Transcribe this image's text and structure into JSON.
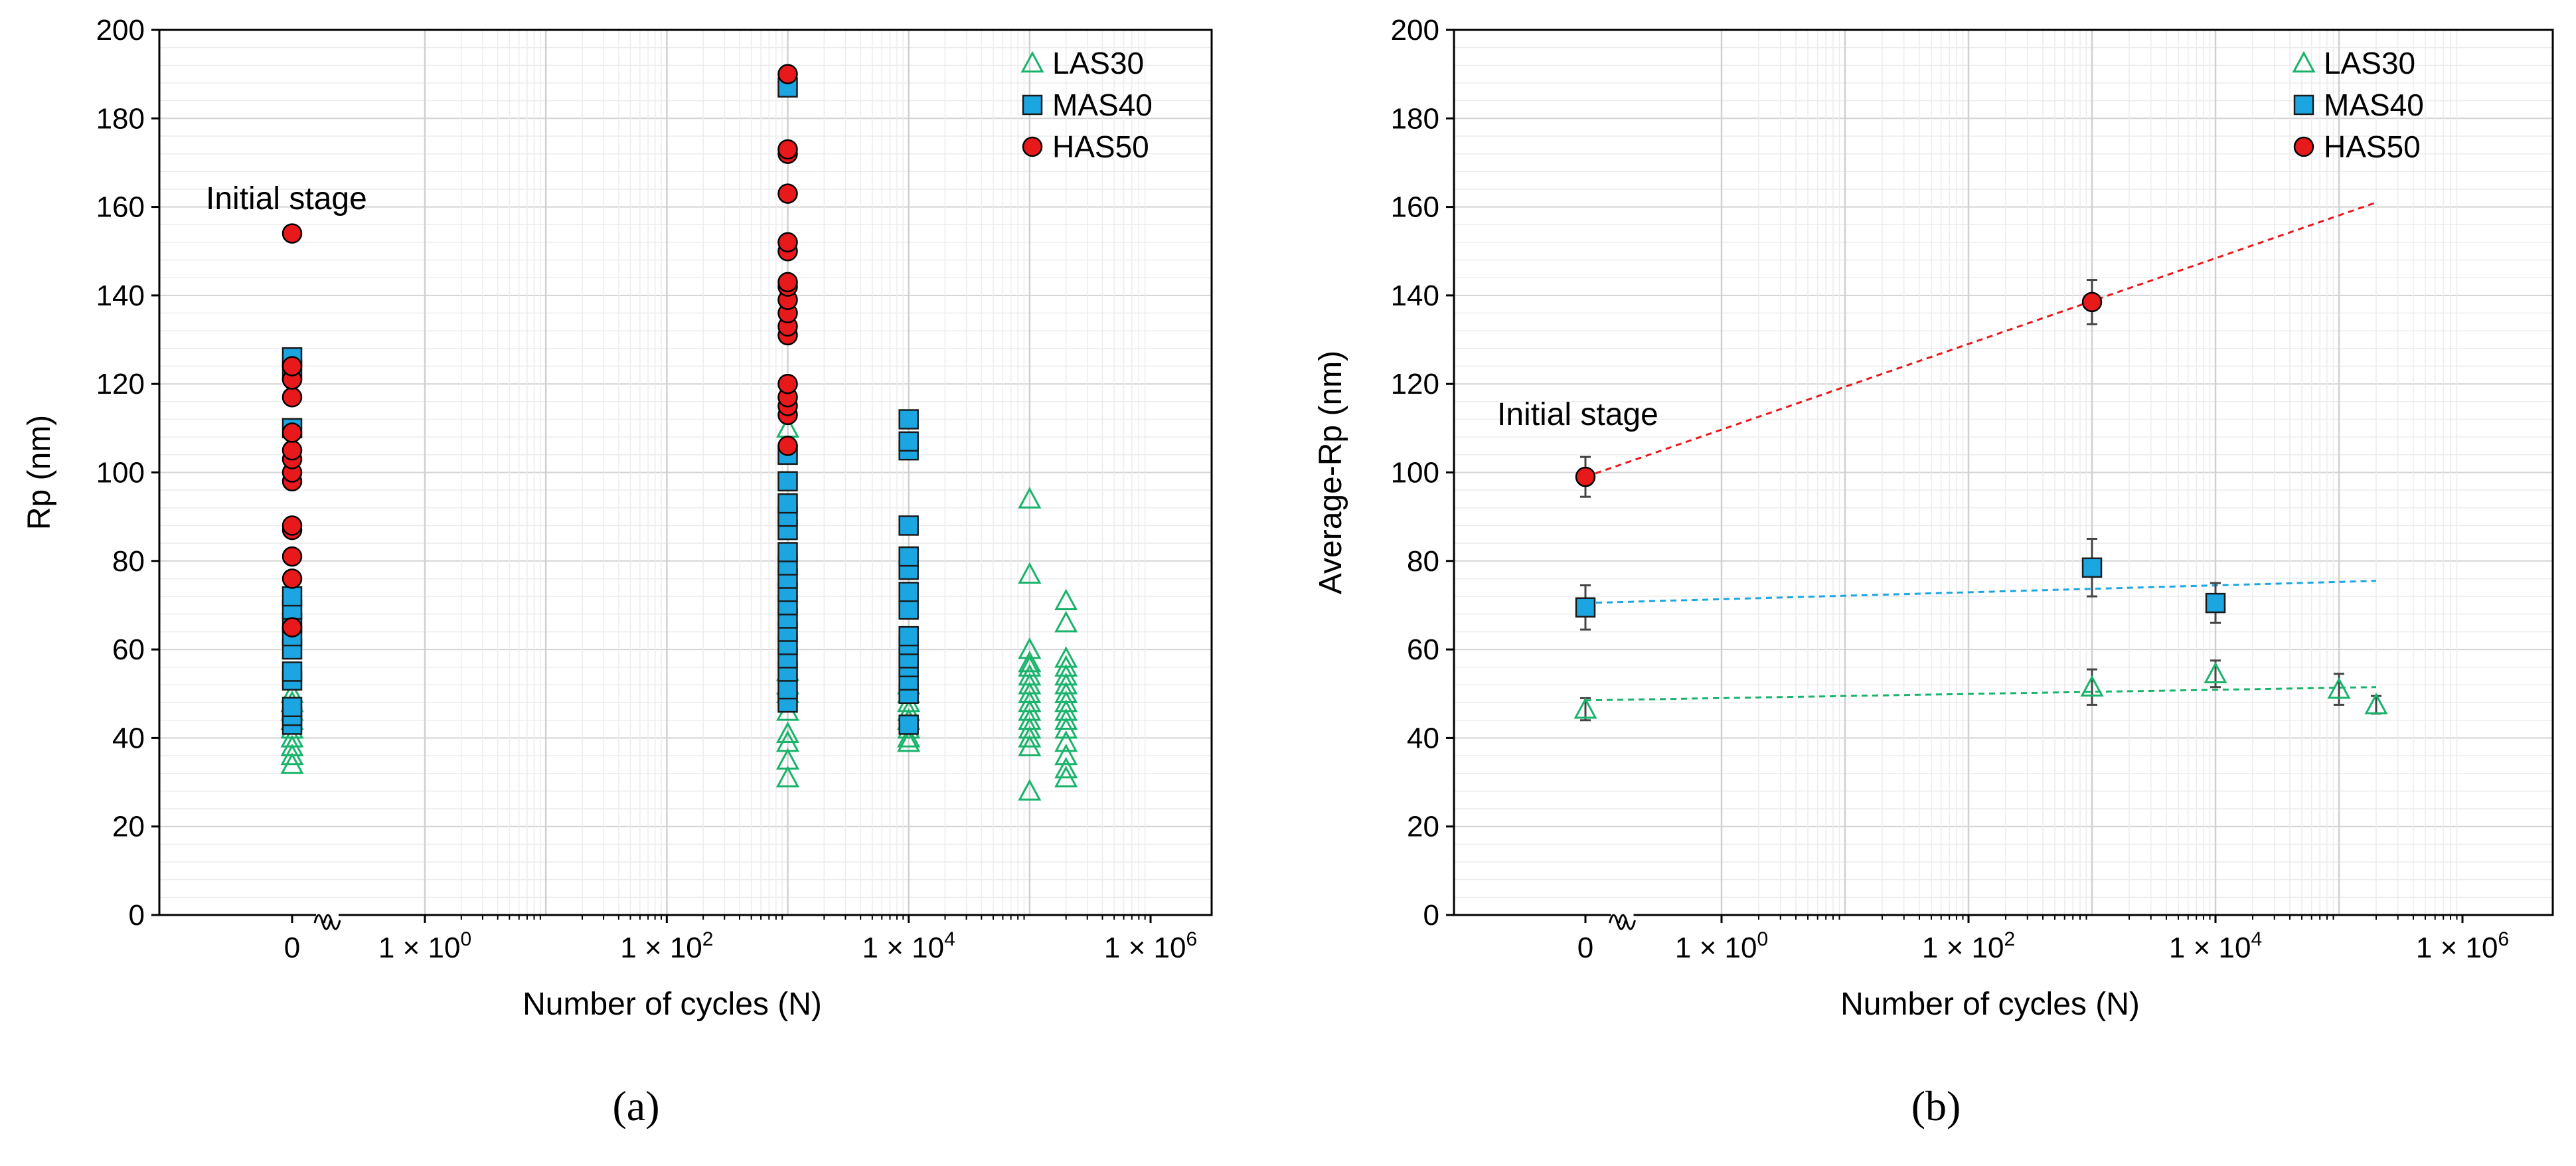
{
  "chart_data": [
    {
      "type": "scatter",
      "panel_label": "(a)",
      "xlabel": "Number of cycles (N)",
      "ylabel": "Rp (nm)",
      "ylim": [
        0,
        200
      ],
      "yticks": [
        "0",
        "20",
        "40",
        "60",
        "80",
        "100",
        "120",
        "140",
        "160",
        "180",
        "200"
      ],
      "x_scale": "log with axis break",
      "xticks": [
        "0",
        "1 × 10^0",
        "1 × 10^2",
        "1 × 10^4",
        "1 × 10^6"
      ],
      "annotation": "Initial stage",
      "legend_position": "top-right",
      "grid": true,
      "series": [
        {
          "name": "LAS30",
          "marker": "open-triangle",
          "color": "#19b36b",
          "points": [
            {
              "x": 0,
              "y": [
                34,
                36,
                38,
                40,
                42,
                44,
                46,
                48,
                50
              ]
            },
            {
              "x": 1000,
              "y": [
                31,
                35,
                39,
                41,
                46,
                50,
                52,
                55,
                110
              ]
            },
            {
              "x": 10000,
              "y": [
                39,
                40,
                42,
                44,
                46,
                48,
                50,
                52
              ]
            },
            {
              "x": 100000,
              "y": [
                28,
                38,
                40,
                42,
                44,
                46,
                48,
                50,
                52,
                54,
                56,
                57,
                60,
                77,
                94
              ]
            },
            {
              "x": 200000,
              "y": [
                31,
                33,
                36,
                39,
                42,
                44,
                46,
                48,
                50,
                52,
                54,
                56,
                58,
                66,
                71
              ]
            }
          ]
        },
        {
          "name": "MAS40",
          "marker": "square",
          "color": "#1ba6e2",
          "points": [
            {
              "x": 0,
              "y": [
                43,
                45,
                47,
                53,
                55,
                60,
                63,
                66,
                69,
                72,
                110,
                123,
                126
              ]
            },
            {
              "x": 1000,
              "y": [
                48,
                51,
                55,
                58,
                61,
                64,
                67,
                70,
                73,
                76,
                79,
                82,
                87,
                90,
                93,
                98,
                104,
                187
              ]
            },
            {
              "x": 10000,
              "y": [
                43,
                50,
                53,
                56,
                58,
                61,
                63,
                69,
                73,
                78,
                81,
                88,
                105,
                107,
                112
              ]
            }
          ]
        },
        {
          "name": "HAS50",
          "marker": "circle",
          "color": "#e8191b",
          "points": [
            {
              "x": 0,
              "y": [
                65,
                76,
                81,
                87,
                88,
                98,
                100,
                103,
                105,
                109,
                117,
                121,
                124,
                154
              ]
            },
            {
              "x": 1000,
              "y": [
                106,
                113,
                115,
                117,
                120,
                131,
                133,
                136,
                139,
                142,
                143,
                150,
                152,
                163,
                172,
                173,
                190
              ]
            }
          ]
        }
      ]
    },
    {
      "type": "scatter",
      "panel_label": "(b)",
      "xlabel": "Number of cycles (N)",
      "ylabel": "Average-Rp (nm)",
      "ylim": [
        0,
        200
      ],
      "yticks": [
        "0",
        "20",
        "40",
        "60",
        "80",
        "100",
        "120",
        "140",
        "160",
        "180",
        "200"
      ],
      "x_scale": "log with axis break",
      "xticks": [
        "0",
        "1 × 10^0",
        "1 × 10^2",
        "1 × 10^4",
        "1 × 10^6"
      ],
      "annotation": "Initial stage",
      "legend_position": "top-right",
      "grid": true,
      "series": [
        {
          "name": "LAS30",
          "marker": "open-triangle",
          "color": "#19b36b",
          "points": [
            {
              "x": 0,
              "y": 46.5,
              "err": 2.5
            },
            {
              "x": 1000,
              "y": 51.5,
              "err": 4
            },
            {
              "x": 10000,
              "y": 54.5,
              "err": 3
            },
            {
              "x": 100000,
              "y": 51,
              "err": 3.5
            },
            {
              "x": 200000,
              "y": 47.5,
              "err": 2
            }
          ],
          "trend": {
            "from": [
              0,
              48.5
            ],
            "to": [
              200000,
              51.5
            ]
          }
        },
        {
          "name": "MAS40",
          "marker": "square",
          "color": "#1ba6e2",
          "points": [
            {
              "x": 0,
              "y": 69.5,
              "err": 5
            },
            {
              "x": 1000,
              "y": 78.5,
              "err": 6.5
            },
            {
              "x": 10000,
              "y": 70.5,
              "err": 4.5
            }
          ],
          "trend": {
            "from": [
              0,
              70.5
            ],
            "to": [
              200000,
              75.5
            ]
          }
        },
        {
          "name": "HAS50",
          "marker": "circle",
          "color": "#e8191b",
          "points": [
            {
              "x": 0,
              "y": 99,
              "err": 4.5
            },
            {
              "x": 1000,
              "y": 138.5,
              "err": 5
            }
          ],
          "trend": {
            "from": [
              0,
              99
            ],
            "to": [
              200000,
              161
            ]
          }
        }
      ]
    }
  ]
}
